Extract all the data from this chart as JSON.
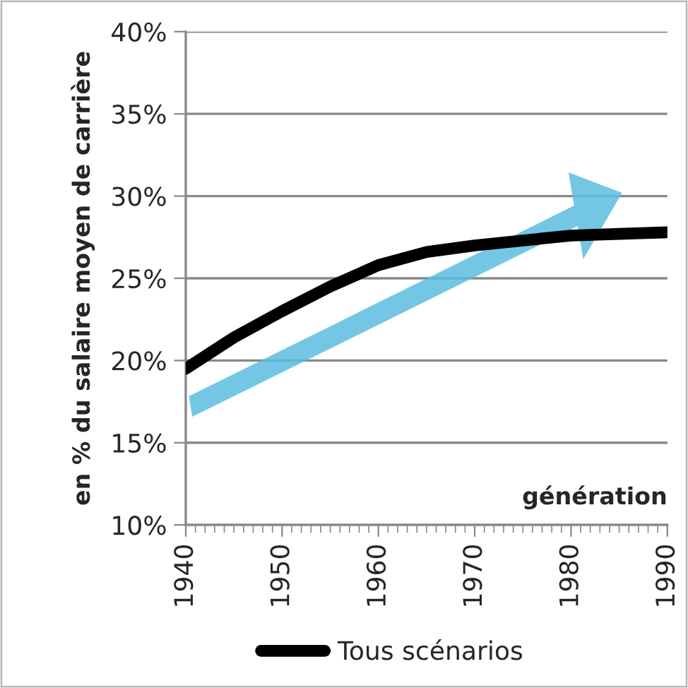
{
  "chart_data": {
    "type": "line",
    "ylabel": "en % du salaire moyen de carrière",
    "xlabel": "génération",
    "x": [
      1940,
      1945,
      1950,
      1955,
      1960,
      1965,
      1970,
      1975,
      1980,
      1985,
      1990
    ],
    "series": [
      {
        "name": "Tous scénarios",
        "color": "#000000",
        "values": [
          19.5,
          21.4,
          23.0,
          24.5,
          25.8,
          26.6,
          27.0,
          27.3,
          27.6,
          27.7,
          27.8
        ]
      }
    ],
    "xlim": [
      1940,
      1990
    ],
    "xticks": [
      1940,
      1950,
      1960,
      1970,
      1980,
      1990
    ],
    "ylim": [
      10,
      40
    ],
    "yticks": [
      {
        "value": 10,
        "label": "10%"
      },
      {
        "value": 15,
        "label": "15%"
      },
      {
        "value": 20,
        "label": "20%"
      },
      {
        "value": 25,
        "label": "25%"
      },
      {
        "value": 30,
        "label": "30%"
      },
      {
        "value": 35,
        "label": "35%"
      },
      {
        "value": 40,
        "label": "40%"
      }
    ],
    "grid": "y",
    "legend": "bottom",
    "marker": "none",
    "line_style": "solid"
  }
}
